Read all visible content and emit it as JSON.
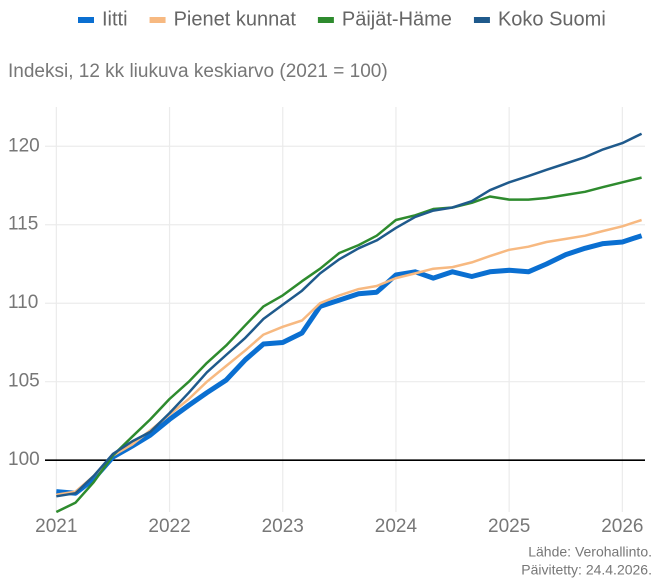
{
  "chart_data": {
    "type": "line",
    "subtitle": "Indeksi, 12 kk liukuva keskiarvo (2021 = 100)",
    "source": "Lähde: Verohallinto.",
    "updated": "Päivitetty: 24.4.2026.",
    "x": [
      2021.0,
      2021.17,
      2021.33,
      2021.5,
      2021.67,
      2021.83,
      2022.0,
      2022.17,
      2022.33,
      2022.5,
      2022.67,
      2022.83,
      2023.0,
      2023.17,
      2023.33,
      2023.5,
      2023.67,
      2023.83,
      2024.0,
      2024.17,
      2024.33,
      2024.5,
      2024.67,
      2024.83,
      2025.0,
      2025.17,
      2025.33,
      2025.5,
      2025.67,
      2025.83,
      2026.0,
      2026.17
    ],
    "series": [
      {
        "name": "Iitti",
        "color": "#0a6fd1",
        "width": 5,
        "values": [
          98.0,
          97.9,
          98.8,
          100.2,
          100.9,
          101.6,
          102.6,
          103.5,
          104.3,
          105.1,
          106.4,
          107.4,
          107.5,
          108.1,
          109.8,
          110.2,
          110.6,
          110.7,
          111.8,
          112.0,
          111.6,
          112.0,
          111.7,
          112.0,
          112.1,
          112.0,
          112.5,
          113.1,
          113.5,
          113.8,
          113.9,
          114.3
        ]
      },
      {
        "name": "Pienet kunnat",
        "color": "#f7b981",
        "width": 2.5,
        "values": [
          97.8,
          98.0,
          99.0,
          100.3,
          101.0,
          101.9,
          102.9,
          103.9,
          105.0,
          106.0,
          107.0,
          108.0,
          108.5,
          108.9,
          110.0,
          110.5,
          110.9,
          111.1,
          111.6,
          111.9,
          112.2,
          112.3,
          112.6,
          113.0,
          113.4,
          113.6,
          113.9,
          114.1,
          114.3,
          114.6,
          114.9,
          115.3
        ]
      },
      {
        "name": "Päijät-Häme",
        "color": "#2e8b2e",
        "width": 2.5,
        "values": [
          96.7,
          97.3,
          98.6,
          100.3,
          101.5,
          102.6,
          103.9,
          105.0,
          106.2,
          107.3,
          108.6,
          109.8,
          110.5,
          111.4,
          112.2,
          113.2,
          113.7,
          114.3,
          115.3,
          115.6,
          116.0,
          116.1,
          116.4,
          116.8,
          116.6,
          116.6,
          116.7,
          116.9,
          117.1,
          117.4,
          117.7,
          118.0
        ]
      },
      {
        "name": "Koko Suomi",
        "color": "#1f5a8c",
        "width": 2.5,
        "values": [
          97.7,
          97.9,
          99.0,
          100.4,
          101.2,
          101.8,
          103.0,
          104.3,
          105.6,
          106.7,
          107.8,
          109.0,
          109.9,
          110.8,
          111.9,
          112.8,
          113.5,
          114.0,
          114.8,
          115.5,
          115.9,
          116.1,
          116.5,
          117.2,
          117.7,
          118.1,
          118.5,
          118.9,
          119.3,
          119.8,
          120.2,
          120.8
        ]
      }
    ],
    "xlim": [
      2020.9,
      2026.2
    ],
    "xticks": [
      2021,
      2022,
      2023,
      2024,
      2025,
      2026
    ],
    "ylim": [
      96.7,
      122.5
    ],
    "yticks": [
      100,
      105,
      110,
      115,
      120
    ],
    "reference_line": 100,
    "grid": true,
    "legend": "top"
  }
}
